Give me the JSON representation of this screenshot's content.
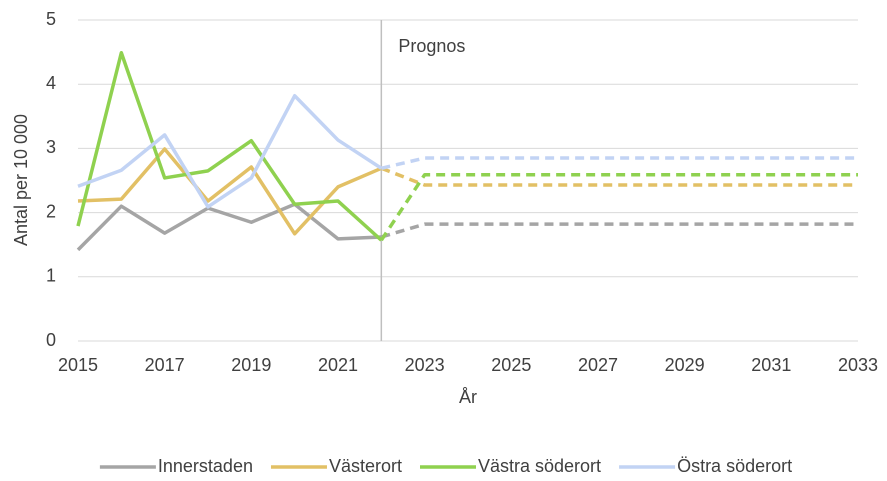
{
  "chart_data": {
    "type": "line",
    "x": [
      2015,
      2016,
      2017,
      2018,
      2019,
      2020,
      2021,
      2022,
      2023,
      2024,
      2025,
      2026,
      2027,
      2028,
      2029,
      2030,
      2031,
      2032,
      2033
    ],
    "series": [
      {
        "name": "Innerstaden",
        "color": "#a5a5a5",
        "values": [
          1.42,
          2.1,
          1.68,
          2.07,
          1.85,
          2.13,
          1.59,
          1.62,
          1.82,
          1.82,
          1.82,
          1.82,
          1.82,
          1.82,
          1.82,
          1.82,
          1.82,
          1.82,
          1.82
        ]
      },
      {
        "name": "Västerort",
        "color": "#e2c065",
        "values": [
          2.18,
          2.21,
          2.99,
          2.18,
          2.71,
          1.67,
          2.4,
          2.69,
          2.43,
          2.43,
          2.43,
          2.43,
          2.43,
          2.43,
          2.43,
          2.43,
          2.43,
          2.43,
          2.43
        ]
      },
      {
        "name": "Västra söderort",
        "color": "#8fd14f",
        "values": [
          1.79,
          4.49,
          2.54,
          2.65,
          3.12,
          2.13,
          2.18,
          1.57,
          2.59,
          2.59,
          2.59,
          2.59,
          2.59,
          2.59,
          2.59,
          2.59,
          2.59,
          2.59,
          2.59
        ]
      },
      {
        "name": "Östra söderort",
        "color": "#c2d3f4",
        "values": [
          2.41,
          2.66,
          3.21,
          2.09,
          2.54,
          3.82,
          3.13,
          2.69,
          2.85,
          2.85,
          2.85,
          2.85,
          2.85,
          2.85,
          2.85,
          2.85,
          2.85,
          2.85,
          2.85
        ]
      }
    ],
    "forecast_x": 2022,
    "forecast_label": "Prognos",
    "xlabel": "År",
    "ylabel": "Antal per 10 000",
    "xlim": [
      2015,
      2033
    ],
    "xticks": [
      2015,
      2017,
      2019,
      2021,
      2023,
      2025,
      2027,
      2029,
      2031,
      2033
    ],
    "ylim": [
      0,
      5
    ],
    "yticks": [
      0,
      1,
      2,
      3,
      4,
      5
    ],
    "grid": true,
    "legend": "bottom"
  }
}
